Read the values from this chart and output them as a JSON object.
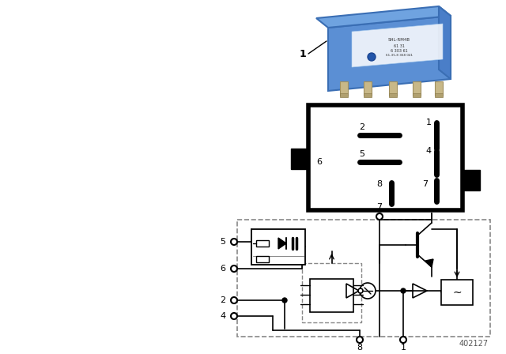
{
  "fig_width": 6.4,
  "fig_height": 4.48,
  "dpi": 100,
  "bg_color": "#ffffff",
  "part_number": "402127",
  "relay": {
    "body_color": "#5b8fd4",
    "body_color2": "#4a7ec8",
    "body_color3": "#6fa3e0",
    "pin_color": "#b8a878"
  }
}
